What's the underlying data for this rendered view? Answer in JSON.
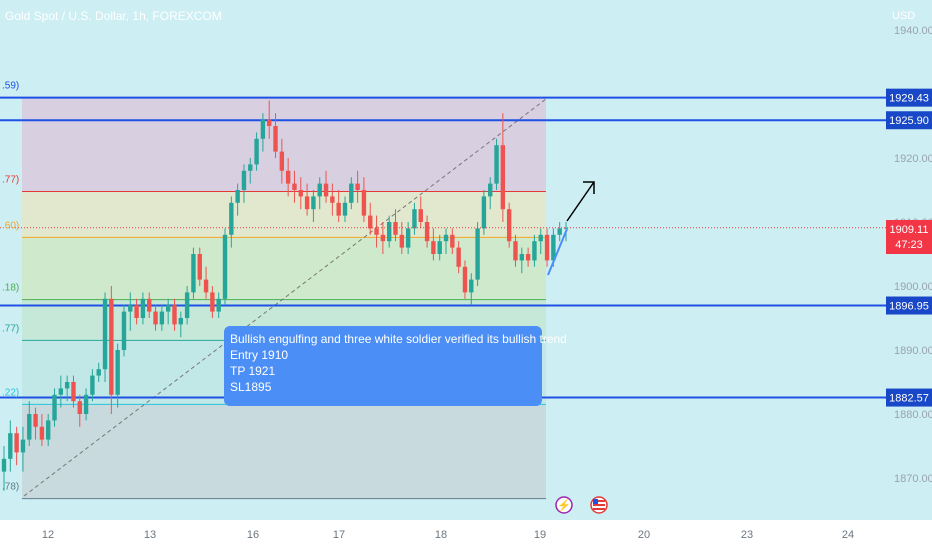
{
  "header": {
    "title": "Gold Spot / U.S. Dollar, 1h, FOREXCOM"
  },
  "price_axis": {
    "currency": "USD"
  },
  "colors": {
    "background": "#cdeef3",
    "bull": "#26a69a",
    "bear": "#ef5350",
    "level_line": "#1e50e6",
    "annotation_box": "#4b8ef5",
    "label_box": "#1848c8",
    "current_price": "#f23645"
  },
  "chart_data": {
    "type": "candlestick",
    "symbol": "Gold Spot / U.S. Dollar",
    "interval": "1h",
    "exchange": "FOREXCOM",
    "x_ticks": [
      "12",
      "13",
      "16",
      "17",
      "18",
      "19",
      "20",
      "23",
      "24"
    ],
    "y_ticks": [
      "1940.00",
      "1920.00",
      "1910.00",
      "1900.00",
      "1890.00",
      "1880.00",
      "1870.00"
    ],
    "ylim": [
      1863,
      1944
    ],
    "levels": [
      {
        "label": "1929.43",
        "value": 1929.43
      },
      {
        "label": "1925.90",
        "value": 1925.9
      },
      {
        "label": "1896.95",
        "value": 1896.95
      },
      {
        "label": "1882.57",
        "value": 1882.57
      }
    ],
    "current_price": {
      "label": "1909.11",
      "value": 1909.11,
      "countdown": "47:23"
    },
    "fib_labels": [
      ".59)",
      ".77)",
      ".60)",
      ".18)",
      ".77)",
      ".22)",
      ".78)"
    ],
    "fib_levels": [
      1929.43,
      1914.77,
      1907.6,
      1897.88,
      1891.5,
      1881.5,
      1866.78
    ],
    "annotation": {
      "lines": [
        "Bullish engulfing and three white soldier verified its bullish trend",
        "Entry 1910",
        "TP 1921",
        "SL1895"
      ]
    },
    "candles": [
      [
        1871,
        1875,
        1868,
        1873
      ],
      [
        1873,
        1879,
        1871,
        1877
      ],
      [
        1877,
        1878,
        1872,
        1874
      ],
      [
        1874,
        1878,
        1871,
        1876
      ],
      [
        1876,
        1882,
        1875,
        1880
      ],
      [
        1880,
        1881,
        1876,
        1878
      ],
      [
        1878,
        1880,
        1875,
        1876
      ],
      [
        1876,
        1880,
        1875,
        1879
      ],
      [
        1879,
        1884,
        1878,
        1883
      ],
      [
        1883,
        1886,
        1881,
        1884
      ],
      [
        1884,
        1886,
        1882,
        1885
      ],
      [
        1885,
        1886,
        1881,
        1882
      ],
      [
        1882,
        1883,
        1878,
        1880
      ],
      [
        1880,
        1884,
        1879,
        1883
      ],
      [
        1883,
        1887,
        1882,
        1886
      ],
      [
        1886,
        1888,
        1885,
        1887
      ],
      [
        1887,
        1899,
        1885,
        1898
      ],
      [
        1898,
        1900,
        1880,
        1883
      ],
      [
        1883,
        1891,
        1881,
        1890
      ],
      [
        1890,
        1897,
        1889,
        1896
      ],
      [
        1896,
        1899,
        1893,
        1897
      ],
      [
        1897,
        1898,
        1894,
        1895
      ],
      [
        1895,
        1899,
        1894,
        1898
      ],
      [
        1898,
        1899,
        1895,
        1896
      ],
      [
        1896,
        1897,
        1893,
        1894
      ],
      [
        1894,
        1897,
        1893,
        1896
      ],
      [
        1896,
        1898,
        1894,
        1897
      ],
      [
        1897,
        1898,
        1893,
        1894
      ],
      [
        1894,
        1896,
        1892,
        1895
      ],
      [
        1895,
        1900,
        1894,
        1899
      ],
      [
        1899,
        1906,
        1898,
        1905
      ],
      [
        1905,
        1906,
        1900,
        1901
      ],
      [
        1901,
        1903,
        1898,
        1899
      ],
      [
        1899,
        1900,
        1895,
        1896
      ],
      [
        1896,
        1899,
        1895,
        1898
      ],
      [
        1898,
        1909,
        1897,
        1908
      ],
      [
        1908,
        1914,
        1906,
        1913
      ],
      [
        1913,
        1916,
        1911,
        1915
      ],
      [
        1915,
        1919,
        1913,
        1918
      ],
      [
        1918,
        1920,
        1916,
        1919
      ],
      [
        1919,
        1924,
        1918,
        1923
      ],
      [
        1923,
        1927,
        1921,
        1926
      ],
      [
        1926,
        1929,
        1923,
        1925
      ],
      [
        1925,
        1927,
        1920,
        1921
      ],
      [
        1921,
        1923,
        1916,
        1918
      ],
      [
        1918,
        1920,
        1914,
        1916
      ],
      [
        1916,
        1918,
        1913,
        1915
      ],
      [
        1915,
        1917,
        1912,
        1914
      ],
      [
        1914,
        1916,
        1911,
        1912
      ],
      [
        1912,
        1915,
        1910,
        1914
      ],
      [
        1914,
        1917,
        1912,
        1916
      ],
      [
        1916,
        1918,
        1913,
        1914
      ],
      [
        1914,
        1916,
        1911,
        1913
      ],
      [
        1913,
        1915,
        1910,
        1911
      ],
      [
        1911,
        1914,
        1910,
        1913
      ],
      [
        1913,
        1917,
        1912,
        1916
      ],
      [
        1916,
        1918,
        1913,
        1915
      ],
      [
        1915,
        1917,
        1910,
        1911
      ],
      [
        1911,
        1913,
        1908,
        1909
      ],
      [
        1909,
        1911,
        1906,
        1908
      ],
      [
        1908,
        1910,
        1905,
        1907
      ],
      [
        1907,
        1911,
        1906,
        1910
      ],
      [
        1910,
        1912,
        1907,
        1908
      ],
      [
        1908,
        1910,
        1905,
        1906
      ],
      [
        1906,
        1910,
        1905,
        1909
      ],
      [
        1909,
        1913,
        1908,
        1912
      ],
      [
        1912,
        1914,
        1909,
        1910
      ],
      [
        1910,
        1911,
        1906,
        1907
      ],
      [
        1907,
        1909,
        1904,
        1905
      ],
      [
        1905,
        1908,
        1904,
        1907
      ],
      [
        1907,
        1909,
        1905,
        1908
      ],
      [
        1908,
        1909,
        1905,
        1906
      ],
      [
        1906,
        1907,
        1902,
        1903
      ],
      [
        1903,
        1904,
        1898,
        1899
      ],
      [
        1899,
        1902,
        1897,
        1901
      ],
      [
        1901,
        1910,
        1900,
        1909
      ],
      [
        1909,
        1915,
        1908,
        1914
      ],
      [
        1914,
        1917,
        1912,
        1916
      ],
      [
        1916,
        1923,
        1915,
        1922
      ],
      [
        1922,
        1927,
        1910,
        1912
      ],
      [
        1912,
        1913,
        1906,
        1907
      ],
      [
        1907,
        1908,
        1903,
        1904
      ],
      [
        1904,
        1906,
        1902,
        1905
      ],
      [
        1905,
        1906,
        1903,
        1904
      ],
      [
        1904,
        1908,
        1903,
        1907
      ],
      [
        1907,
        1909,
        1905,
        1908
      ],
      [
        1908,
        1909,
        1903,
        1904
      ],
      [
        1904,
        1909,
        1903,
        1908
      ],
      [
        1908,
        1910,
        1907,
        1909
      ],
      [
        1909,
        1910,
        1907,
        1909.11
      ]
    ]
  }
}
